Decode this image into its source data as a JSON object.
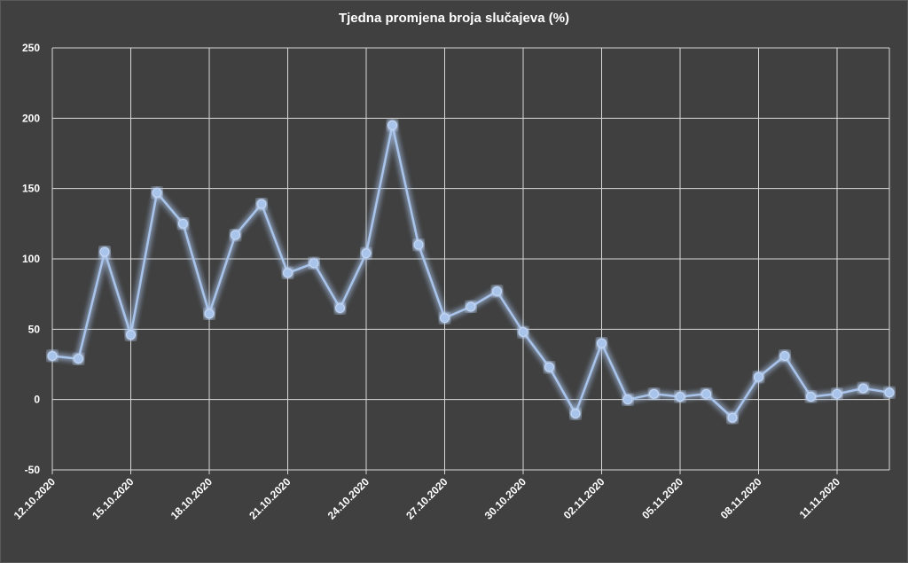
{
  "chart_data": {
    "type": "line",
    "title": "Tjedna promjena broja slučajeva (%)",
    "xlabel": "",
    "ylabel": "",
    "ylim": [
      -50,
      250
    ],
    "yticks": [
      -50,
      0,
      50,
      100,
      150,
      200,
      250
    ],
    "grid": true,
    "legend": "none",
    "x_tick_labels": [
      "12.10.2020",
      "15.10.2020",
      "18.10.2020",
      "21.10.2020",
      "24.10.2020",
      "27.10.2020",
      "30.10.2020",
      "02.11.2020",
      "05.11.2020",
      "08.11.2020",
      "11.11.2020"
    ],
    "x": [
      "12.10.2020",
      "13.10.2020",
      "14.10.2020",
      "15.10.2020",
      "16.10.2020",
      "17.10.2020",
      "18.10.2020",
      "19.10.2020",
      "20.10.2020",
      "21.10.2020",
      "22.10.2020",
      "23.10.2020",
      "24.10.2020",
      "25.10.2020",
      "26.10.2020",
      "27.10.2020",
      "28.10.2020",
      "29.10.2020",
      "30.10.2020",
      "31.10.2020",
      "01.11.2020",
      "02.11.2020",
      "03.11.2020",
      "04.11.2020",
      "05.11.2020",
      "06.11.2020",
      "07.11.2020",
      "08.11.2020",
      "09.11.2020",
      "10.11.2020",
      "11.11.2020",
      "12.11.2020",
      "13.11.2020"
    ],
    "series": [
      {
        "color": "#a9c4eb",
        "values": [
          31,
          29,
          105,
          46,
          147,
          125,
          61,
          117,
          139,
          90,
          97,
          65,
          104,
          195,
          110,
          58,
          66,
          77,
          48,
          23,
          -10,
          40,
          0,
          4,
          2,
          4,
          -13,
          16,
          31,
          2,
          4,
          8,
          5
        ]
      }
    ]
  }
}
